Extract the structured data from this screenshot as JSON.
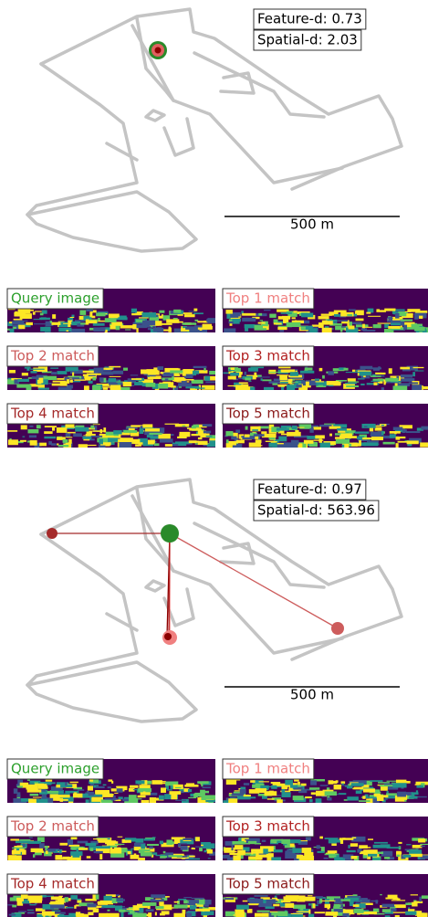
{
  "panels": [
    {
      "feature_d": "Feature-d: 0.73",
      "spatial_d": "Spatial-d: 2.03",
      "scale": "500 m",
      "images": [
        "Query image",
        "Top 1 match",
        "Top 2 match",
        "Top 3 match",
        "Top 4 match",
        "Top 5 match"
      ]
    },
    {
      "feature_d": "Feature-d: 0.97",
      "spatial_d": "Spatial-d: 563.96",
      "scale": "500 m",
      "images": [
        "Query image",
        "Top 1 match",
        "Top 2 match",
        "Top 3 match",
        "Top 4 match",
        "Top 5 match"
      ]
    }
  ]
}
